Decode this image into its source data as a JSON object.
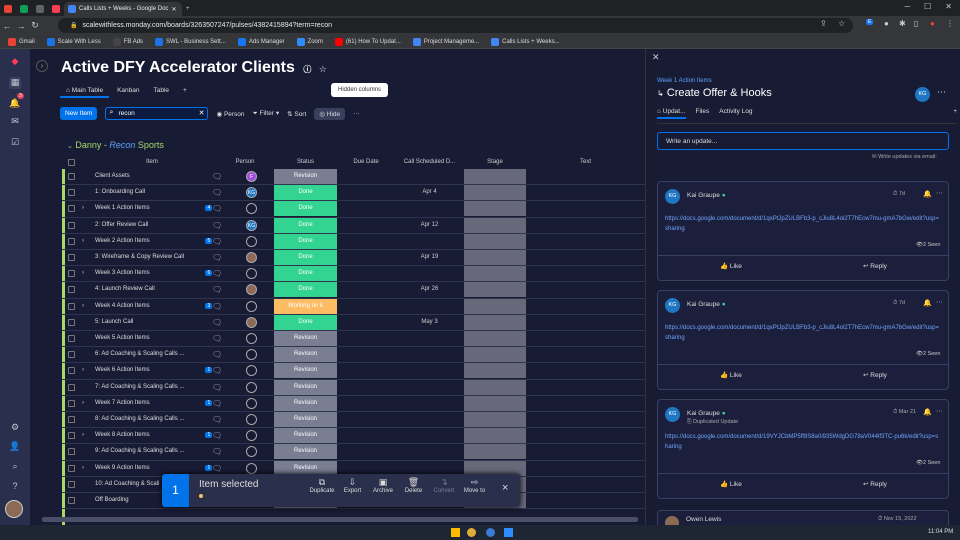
{
  "browser": {
    "tabs": [
      {
        "label": "Calls Lists + Weeks - Google Doc",
        "active": true
      }
    ],
    "url": "scalewithless.monday.com/boards/3263507247/pulses/4382415894?term=recon",
    "bookmarks": [
      "Gmail",
      "Scale With Less",
      "FB Ads",
      "SWL - Business Sett...",
      "Ads Manager",
      "Zoom",
      "(61) How To Updat...",
      "Project Manageme...",
      "Calls Lists + Weeks..."
    ],
    "extensions_badge": "E"
  },
  "rail": {
    "notification_badge": "3"
  },
  "board": {
    "title": "Active DFY Accelerator Clients",
    "views": [
      "Main Table",
      "Kanban",
      "Table",
      "+"
    ],
    "toolbar": {
      "new_item": "New Item",
      "search_value": "recon",
      "person": "Person",
      "filter": "Filter",
      "sort": "Sort",
      "hide": "Hide",
      "more": "···"
    },
    "tooltip": "Hidden columns",
    "group": {
      "prefix": "Danny - ",
      "highlight": "Recon",
      "suffix": " Sports"
    },
    "columns": [
      "Item",
      "Person",
      "Status",
      "Due Date",
      "Call Scheduled D...",
      "Stage",
      "Text"
    ],
    "rows": [
      {
        "name": "Client Assets",
        "expand": false,
        "sub": "",
        "person": "F",
        "status": "Revision",
        "call": ""
      },
      {
        "name": "1: Onboarding Call",
        "expand": false,
        "sub": "",
        "person": "KG",
        "status": "Done",
        "call": "Apr 4"
      },
      {
        "name": "Week 1 Action Items",
        "expand": true,
        "sub": "4",
        "person": "",
        "status": "Done",
        "call": ""
      },
      {
        "name": "2: Offer Review Call",
        "expand": false,
        "sub": "",
        "person": "KG",
        "status": "Done",
        "call": "Apr 12"
      },
      {
        "name": "Week 2 Action Items",
        "expand": true,
        "sub": "5",
        "person": "",
        "status": "Done",
        "call": ""
      },
      {
        "name": "3: Wireframe & Copy Review Call",
        "expand": false,
        "sub": "",
        "person": "photo",
        "status": "Done",
        "call": "Apr 19"
      },
      {
        "name": "Week 3 Action Items",
        "expand": true,
        "sub": "6",
        "person": "",
        "status": "Done",
        "call": ""
      },
      {
        "name": "4: Launch Review Call",
        "expand": false,
        "sub": "",
        "person": "photo",
        "status": "Done",
        "call": "Apr 26"
      },
      {
        "name": "Week 4 Action Items",
        "expand": true,
        "sub": "3",
        "person": "",
        "status": "Working on it",
        "call": ""
      },
      {
        "name": "5: Launch Call",
        "expand": false,
        "sub": "",
        "person": "photo",
        "status": "Done",
        "call": "May 3"
      },
      {
        "name": "Week 5 Action Items",
        "expand": false,
        "sub": "",
        "person": "",
        "status": "Revision",
        "call": ""
      },
      {
        "name": "6: Ad Coaching & Scaling Calls ...",
        "expand": false,
        "sub": "",
        "person": "",
        "status": "Revision",
        "call": ""
      },
      {
        "name": "Week 6 Action Items",
        "expand": true,
        "sub": "1",
        "person": "",
        "status": "Revision",
        "call": ""
      },
      {
        "name": "7: Ad Coaching & Scaling Calls ...",
        "expand": false,
        "sub": "",
        "person": "",
        "status": "Revision",
        "call": ""
      },
      {
        "name": "Week 7 Action Items",
        "expand": true,
        "sub": "1",
        "person": "",
        "status": "Revision",
        "call": ""
      },
      {
        "name": "8: Ad Coaching & Scaling Calls ...",
        "expand": false,
        "sub": "",
        "person": "",
        "status": "Revision",
        "call": ""
      },
      {
        "name": "Week 8 Action Items",
        "expand": true,
        "sub": "1",
        "person": "",
        "status": "Revision",
        "call": ""
      },
      {
        "name": "9: Ad Coaching & Scaling Calls ...",
        "expand": false,
        "sub": "",
        "person": "",
        "status": "Revision",
        "call": ""
      },
      {
        "name": "Week 9 Action Items",
        "expand": true,
        "sub": "1",
        "person": "",
        "status": "Revision",
        "call": ""
      },
      {
        "name": "10: Ad Coaching & Scali",
        "expand": false,
        "sub": "",
        "person": "",
        "status": "",
        "call": ""
      },
      {
        "name": "Off Boarding",
        "expand": false,
        "sub": "",
        "person": "",
        "status": "Revision",
        "call": ""
      }
    ],
    "status_colors": {
      "Done": "#33d391",
      "Revision": "#797e93",
      "Working on it": "#fdbc64"
    }
  },
  "selection_bar": {
    "count": "1",
    "label": "Item selected",
    "actions": [
      "Duplicate",
      "Export",
      "Archive",
      "Delete",
      "Convert",
      "Move to"
    ],
    "close": "×"
  },
  "panel": {
    "breadcrumb": "Week 1 Action Items",
    "title": "Create Offer & Hooks",
    "avatar": "KG",
    "tabs": [
      "Updat...",
      "Files",
      "Activity Log",
      "+"
    ],
    "input_placeholder": "Write an update...",
    "email_hint": "Write updates via email:",
    "updates": [
      {
        "author": "Kai Graupe",
        "time": "7d",
        "sub": "",
        "link": "https://docs.google.com/document/d/1qxPtJpZULBFb3-p_cJiu8L4ol2T7hEcw7mu-gmA7bGw/edit?usp=sharing",
        "seen": "2 Seen"
      },
      {
        "author": "Kai Graupe",
        "time": "7d",
        "sub": "",
        "link": "https://docs.google.com/document/d/1qxPtJpZULBFb3-p_cJiu8L4ol2T7hEcw7mu-gmA7bGw/edit?usp=sharing",
        "seen": "2 Seen"
      },
      {
        "author": "Kai Graupe",
        "time": "Mar 21",
        "sub": "Duplicated Update",
        "link": "https://docs.google.com/document/d/19VYJCbMP5ff8S8a0i935WdgDG78aV044lf3TC-pu6k/edit?usp=sharing",
        "seen": "2 Seen"
      }
    ],
    "like": "Like",
    "reply": "Reply",
    "last_author": "Owen Lewis",
    "last_time": "Nov 15, 2022"
  },
  "taskbar": {
    "time": "11:04 PM"
  }
}
